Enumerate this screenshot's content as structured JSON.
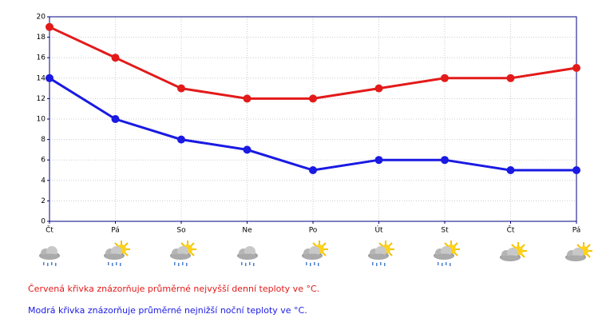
{
  "chart_data": {
    "type": "line",
    "categories": [
      "Čt",
      "Pá",
      "So",
      "Ne",
      "Po",
      "Út",
      "St",
      "Čt",
      "Pá"
    ],
    "series": [
      {
        "name": "Červená křivka znázorňuje průměrné nejvyšší denní teploty ve °C.",
        "color": "#e31a1a",
        "values": [
          19,
          16,
          13,
          12,
          12,
          13,
          14,
          14,
          15
        ]
      },
      {
        "name": "Modrá křivka znázorňuje průměrné nejnižší noční teploty ve °C.",
        "color": "#1a1ae3",
        "values": [
          14,
          10,
          8,
          7,
          5,
          6,
          6,
          5,
          5
        ]
      }
    ],
    "ylim": [
      0,
      20
    ],
    "yticks": [
      0,
      2,
      4,
      6,
      8,
      10,
      12,
      14,
      16,
      18,
      20
    ],
    "grid": true
  }
}
